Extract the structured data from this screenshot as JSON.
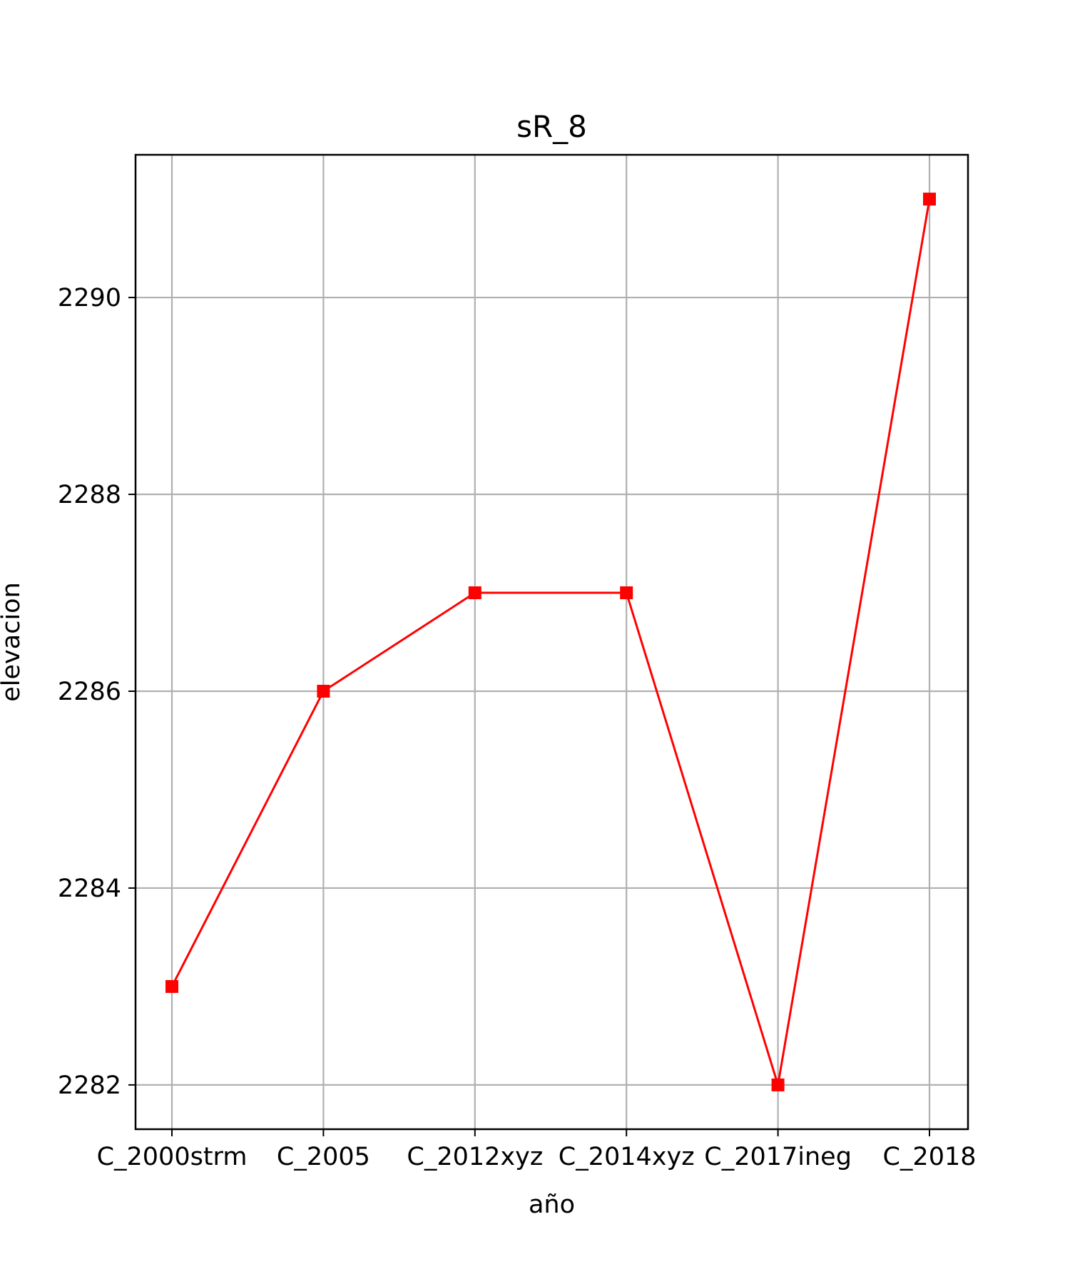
{
  "chart_data": {
    "type": "line",
    "title": "sR_8",
    "xlabel": "año",
    "ylabel": "elevacion",
    "categories": [
      "C_2000strm",
      "C_2005",
      "C_2012xyz",
      "C_2014xyz",
      "C_2017ineg",
      "C_2018"
    ],
    "series": [
      {
        "values": [
          2283,
          2286,
          2287,
          2287,
          2282,
          2291
        ],
        "color": "#ff0000",
        "marker": "square"
      }
    ],
    "ylim": [
      2281.55,
      2291.45
    ],
    "yticks": [
      2282,
      2284,
      2286,
      2288,
      2290
    ],
    "grid": true,
    "legend": "none"
  }
}
